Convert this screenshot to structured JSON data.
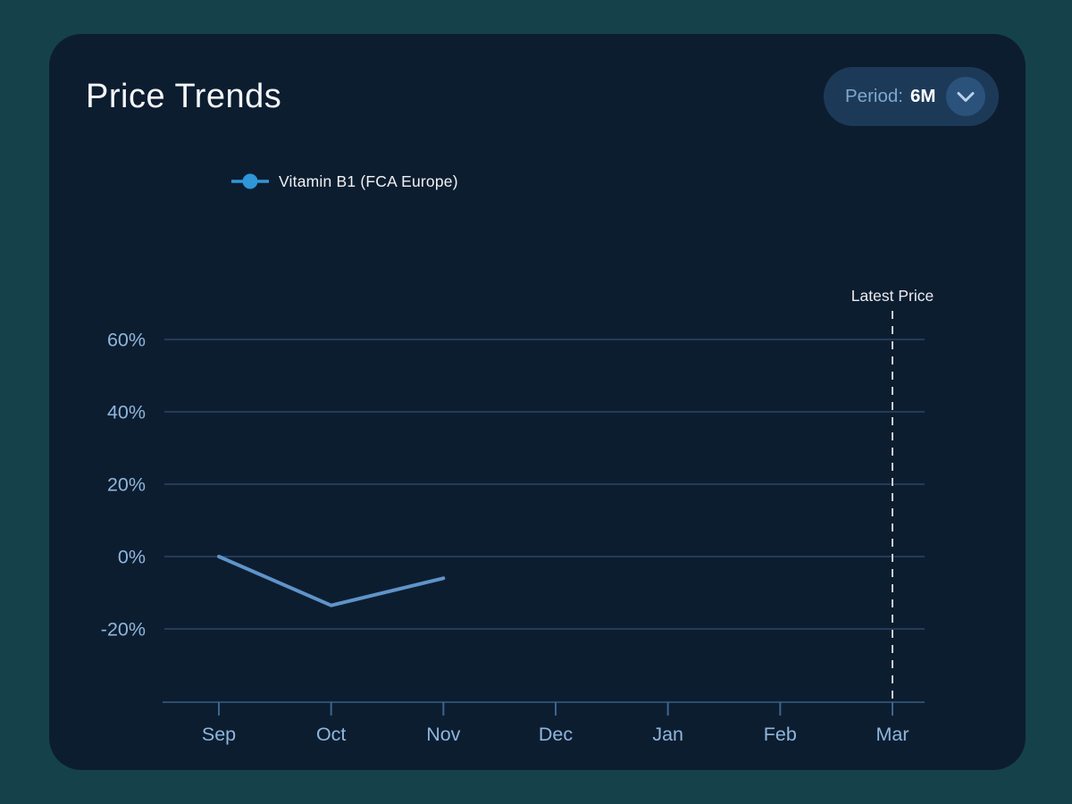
{
  "header": {
    "title": "Price Trends",
    "period_label": "Period:",
    "period_value": "6M"
  },
  "legend": {
    "label": "Vitamin B1 (FCA Europe)"
  },
  "chart_data": {
    "type": "line",
    "title": "Price Trends",
    "categories": [
      "Sep",
      "Oct",
      "Nov",
      "Dec",
      "Jan",
      "Feb",
      "Mar"
    ],
    "y_ticks": [
      60,
      40,
      20,
      0,
      -20
    ],
    "y_tick_suffix": "%",
    "ylim": [
      -40,
      68
    ],
    "grid": "horizontal",
    "legend_position": "top-left",
    "series": [
      {
        "name": "Vitamin B1 (FCA Europe)",
        "points": [
          {
            "x": "Sep",
            "y": 0
          },
          {
            "x": "Oct",
            "y": -13.5
          },
          {
            "x": "Nov",
            "y": -6
          }
        ]
      }
    ],
    "annotation": {
      "label": "Latest Price",
      "x": "Mar",
      "style": "dashed-vertical"
    }
  },
  "colors": {
    "page_bg": "#15424a",
    "card_bg": "#0d1d30",
    "grid": "#2a4766",
    "axis": "#2e4d6e",
    "tick": "#3d6590",
    "tick_text": "#8fb6dc",
    "line": "#5f94c9",
    "legend_marker": "#2f96d8",
    "dashed": "#c9ced5",
    "annotation_text": "#e9ecef",
    "title_text": "#f4f6f8",
    "pill_bg": "#1c3a58",
    "pill_label": "#7ea8d1",
    "pill_value": "#ffffff",
    "chevron_bg": "#2a527b",
    "chevron": "#b9d3eb"
  }
}
